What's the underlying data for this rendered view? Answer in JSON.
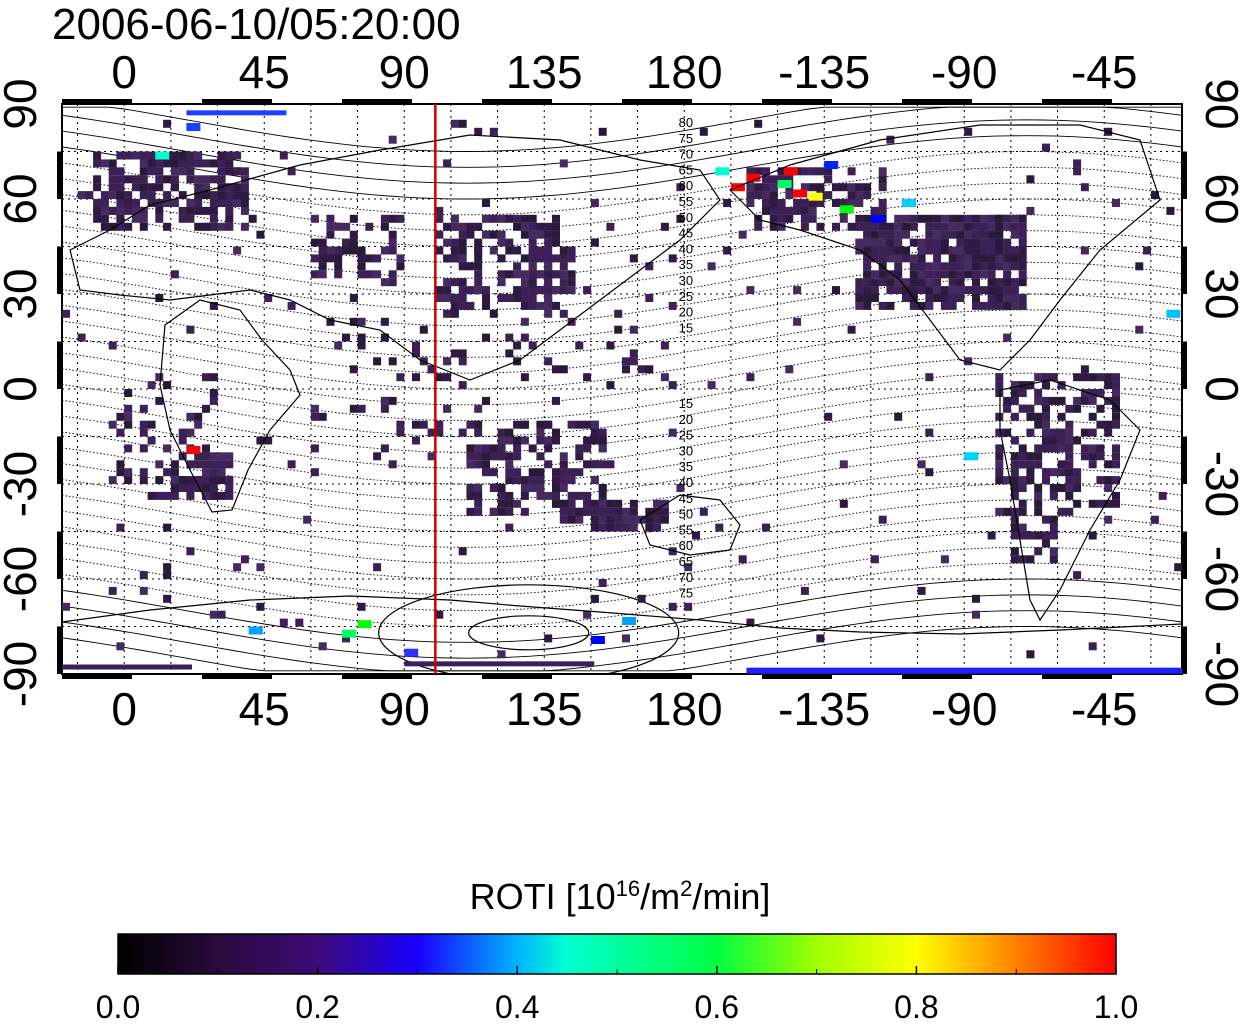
{
  "map": {
    "timestamp": "2006-06-10/05:20:00",
    "longitude_ticks": [
      "0",
      "45",
      "90",
      "135",
      "180",
      "-135",
      "-90",
      "-45"
    ],
    "latitude_ticks": [
      "90",
      "60",
      "30",
      "0",
      "-30",
      "-60",
      "-90"
    ],
    "marker_longitude": 100,
    "marker_color": "#cc0000",
    "contour_labels_north": [
      "80",
      "75",
      "70",
      "65",
      "60",
      "55",
      "50",
      "45",
      "40",
      "35",
      "30",
      "25",
      "20",
      "15"
    ],
    "contour_labels_south": [
      "15",
      "20",
      "25",
      "30",
      "35",
      "40",
      "45",
      "50",
      "55",
      "60",
      "65",
      "70",
      "75"
    ]
  },
  "colorbar": {
    "title_prefix": "ROTI  [10",
    "title_sup1": "16",
    "title_mid": "/m",
    "title_sup2": "2",
    "title_suffix": "/min]",
    "ticks": [
      "0.0",
      "0.2",
      "0.4",
      "0.6",
      "0.8",
      "1.0"
    ],
    "range": [
      0.0,
      1.0
    ],
    "colormap": [
      "#000000",
      "#2a0a3c",
      "#3d0a78",
      "#1a00ff",
      "#00a0ff",
      "#00ffd0",
      "#00ff40",
      "#a0ff00",
      "#ffff00",
      "#ffa000",
      "#ff4000",
      "#ff0000"
    ]
  }
}
